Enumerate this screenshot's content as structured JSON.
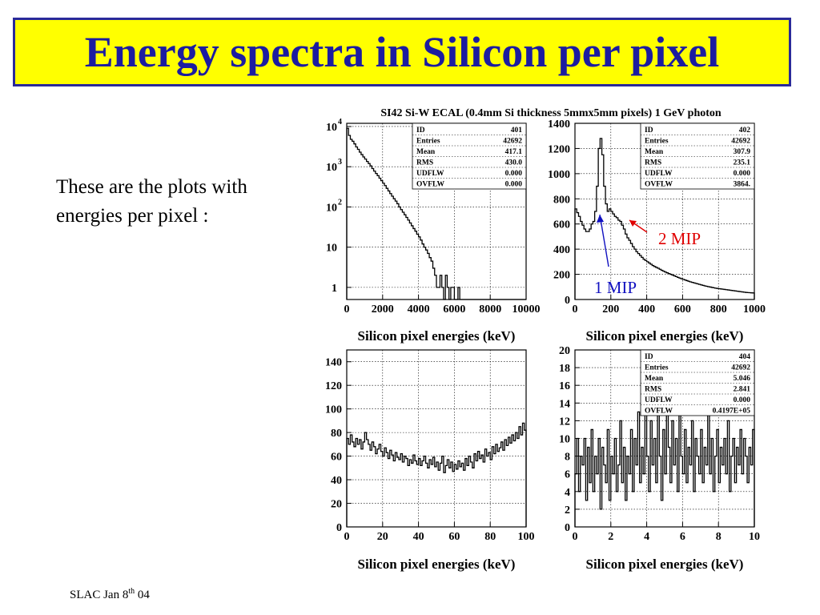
{
  "slide": {
    "title": "Energy spectra in Silicon per pixel",
    "intro_text": "These are the plots with energies per pixel :",
    "figure_title": "SI42 Si-W ECAL (0.4mm Si thickness 5mmx5mm pixels) 1 GeV photon",
    "footer_main": "SLAC Jan 8",
    "footer_sup": "th",
    "footer_tail": " 04"
  },
  "colors": {
    "title_bg": "#ffff00",
    "title_text": "#1c1ca0",
    "annotation_red": "#e00000",
    "annotation_blue": "#1010c0"
  },
  "chart_data": [
    {
      "type": "histogram",
      "xlabel": "Silicon pixel energies (keV)",
      "xlim": [
        0,
        10000
      ],
      "ylim": [
        0.5,
        12000
      ],
      "log_y": true,
      "grid": true,
      "xticks": [
        "0",
        "2000",
        "4000",
        "6000",
        "8000",
        "10000"
      ],
      "yticks": [
        {
          "value": 1,
          "base": "1",
          "exp": ""
        },
        {
          "value": 10,
          "base": "10",
          "exp": ""
        },
        {
          "value": 100,
          "base": "10",
          "exp": "2"
        },
        {
          "value": 1000,
          "base": "10",
          "exp": "3"
        },
        {
          "value": 10000,
          "base": "10",
          "exp": "4"
        }
      ],
      "bin_width": 100,
      "values": [
        9000,
        6000,
        4800,
        4300,
        3700,
        3100,
        2700,
        2300,
        2000,
        1750,
        1550,
        1350,
        1200,
        1050,
        900,
        780,
        680,
        600,
        520,
        450,
        390,
        340,
        290,
        250,
        215,
        185,
        160,
        140,
        120,
        100,
        86,
        74,
        64,
        55,
        47,
        40,
        34,
        29,
        25,
        21,
        18,
        15,
        12,
        10,
        8.5,
        7,
        5.5,
        4.5,
        3,
        2,
        1,
        1,
        2,
        1,
        0,
        2,
        1,
        0,
        1,
        1,
        0,
        0,
        1,
        0,
        0,
        0,
        0,
        0,
        0,
        0,
        0,
        0,
        0,
        0,
        0,
        0,
        0,
        0,
        0,
        0,
        0,
        0,
        0,
        0,
        0,
        0,
        0,
        0,
        0,
        0,
        0,
        0,
        0,
        0,
        0,
        0,
        0,
        0,
        0,
        0
      ],
      "stats": [
        [
          "ID",
          "401"
        ],
        [
          "Entries",
          "42692"
        ],
        [
          "Mean",
          "417.1"
        ],
        [
          "RMS",
          "430.0"
        ],
        [
          "UDFLW",
          "0.000"
        ],
        [
          "OVFLW",
          "0.000"
        ]
      ]
    },
    {
      "type": "histogram",
      "xlabel": "Silicon pixel energies (keV)",
      "xlim": [
        0,
        1000
      ],
      "ylim": [
        0,
        1400
      ],
      "log_y": false,
      "grid": true,
      "xticks": [
        "0",
        "200",
        "400",
        "600",
        "800",
        "1000"
      ],
      "yticks": [
        {
          "value": 0,
          "label": "0"
        },
        {
          "value": 200,
          "label": "200"
        },
        {
          "value": 400,
          "label": "400"
        },
        {
          "value": 600,
          "label": "600"
        },
        {
          "value": 800,
          "label": "800"
        },
        {
          "value": 1000,
          "label": "1000"
        },
        {
          "value": 1200,
          "label": "1200"
        },
        {
          "value": 1400,
          "label": "1400"
        }
      ],
      "bin_width": 10,
      "values": [
        720,
        690,
        660,
        620,
        590,
        560,
        540,
        540,
        560,
        600,
        620,
        700,
        900,
        1200,
        1280,
        1150,
        900,
        760,
        700,
        720,
        700,
        680,
        660,
        650,
        630,
        620,
        590,
        560,
        520,
        490,
        470,
        445,
        420,
        400,
        380,
        365,
        350,
        335,
        320,
        310,
        300,
        290,
        280,
        270,
        262,
        255,
        248,
        240,
        232,
        225,
        218,
        212,
        206,
        200,
        194,
        188,
        182,
        176,
        170,
        165,
        160,
        155,
        150,
        145,
        140,
        136,
        132,
        128,
        124,
        120,
        116,
        112,
        108,
        105,
        102,
        99,
        96,
        93,
        90,
        88,
        86,
        84,
        82,
        80,
        78,
        76,
        74,
        72,
        70,
        68,
        66,
        64,
        62,
        60,
        58,
        56,
        55,
        54,
        53,
        52
      ],
      "stats": [
        [
          "ID",
          "402"
        ],
        [
          "Entries",
          "42692"
        ],
        [
          "Mean",
          "307.9"
        ],
        [
          "RMS",
          "235.1"
        ],
        [
          "UDFLW",
          "0.000"
        ],
        [
          "OVFLW",
          "3864."
        ]
      ],
      "annotations": [
        {
          "label": "2 MIP",
          "color": "#e00000"
        },
        {
          "label": "1 MIP",
          "color": "#1010c0"
        }
      ]
    },
    {
      "type": "histogram",
      "xlabel": "Silicon pixel energies (keV)",
      "xlim": [
        0,
        100
      ],
      "ylim": [
        0,
        150
      ],
      "log_y": false,
      "grid": true,
      "xticks": [
        "0",
        "20",
        "40",
        "60",
        "80",
        "100"
      ],
      "yticks": [
        {
          "value": 0,
          "label": "0"
        },
        {
          "value": 20,
          "label": "20"
        },
        {
          "value": 40,
          "label": "40"
        },
        {
          "value": 60,
          "label": "60"
        },
        {
          "value": 80,
          "label": "80"
        },
        {
          "value": 100,
          "label": "100"
        },
        {
          "value": 120,
          "label": "120"
        },
        {
          "value": 140,
          "label": "140"
        }
      ],
      "bin_width": 1,
      "values": [
        75,
        70,
        78,
        72,
        68,
        75,
        70,
        74,
        66,
        72,
        80,
        74,
        70,
        65,
        72,
        68,
        62,
        66,
        70,
        64,
        60,
        67,
        63,
        58,
        65,
        61,
        56,
        63,
        59,
        57,
        62,
        55,
        60,
        58,
        52,
        57,
        54,
        61,
        56,
        53,
        58,
        52,
        56,
        60,
        54,
        50,
        57,
        53,
        59,
        51,
        55,
        48,
        54,
        60,
        46,
        52,
        57,
        50,
        55,
        47,
        53,
        49,
        56,
        51,
        54,
        48,
        58,
        52,
        60,
        55,
        50,
        62,
        56,
        64,
        58,
        61,
        55,
        66,
        60,
        63,
        57,
        68,
        62,
        70,
        64,
        67,
        72,
        65,
        74,
        69,
        76,
        71,
        78,
        73,
        80,
        75,
        85,
        78,
        88,
        82
      ]
    },
    {
      "type": "histogram",
      "xlabel": "Silicon pixel energies (keV)",
      "xlim": [
        0,
        10
      ],
      "ylim": [
        0,
        20
      ],
      "log_y": false,
      "grid": true,
      "xticks": [
        "0",
        "2",
        "4",
        "6",
        "8",
        "10"
      ],
      "yticks": [
        {
          "value": 0,
          "label": "0"
        },
        {
          "value": 2,
          "label": "2"
        },
        {
          "value": 4,
          "label": "4"
        },
        {
          "value": 6,
          "label": "6"
        },
        {
          "value": 8,
          "label": "8"
        },
        {
          "value": 10,
          "label": "10"
        },
        {
          "value": 12,
          "label": "12"
        },
        {
          "value": 14,
          "label": "14"
        },
        {
          "value": 16,
          "label": "16"
        },
        {
          "value": 18,
          "label": "18"
        },
        {
          "value": 20,
          "label": "20"
        }
      ],
      "bin_width": 0.1,
      "values": [
        6,
        10,
        4,
        8,
        7,
        10,
        3,
        9,
        5,
        11,
        4,
        8,
        6,
        10,
        2,
        9,
        7,
        5,
        11,
        3,
        8,
        6,
        10,
        4,
        7,
        12,
        5,
        9,
        3,
        8,
        6,
        11,
        4,
        10,
        7,
        13,
        5,
        9,
        6,
        15,
        8,
        4,
        12,
        7,
        10,
        5,
        14,
        8,
        3,
        11,
        6,
        16,
        9,
        5,
        12,
        7,
        10,
        4,
        13,
        8,
        6,
        11,
        5,
        9,
        7,
        12,
        4,
        10,
        8,
        6,
        11,
        5,
        9,
        7,
        13,
        6,
        10,
        4,
        8,
        11,
        5,
        9,
        7,
        10,
        6,
        12,
        4,
        8,
        10,
        5,
        9,
        7,
        11,
        6,
        10,
        8,
        5,
        9,
        7,
        11
      ],
      "stats": [
        [
          "ID",
          "404"
        ],
        [
          "Entries",
          "42692"
        ],
        [
          "Mean",
          "5.046"
        ],
        [
          "RMS",
          "2.841"
        ],
        [
          "UDFLW",
          "0.000"
        ],
        [
          "OVFLW",
          "0.4197E+05"
        ]
      ]
    }
  ]
}
